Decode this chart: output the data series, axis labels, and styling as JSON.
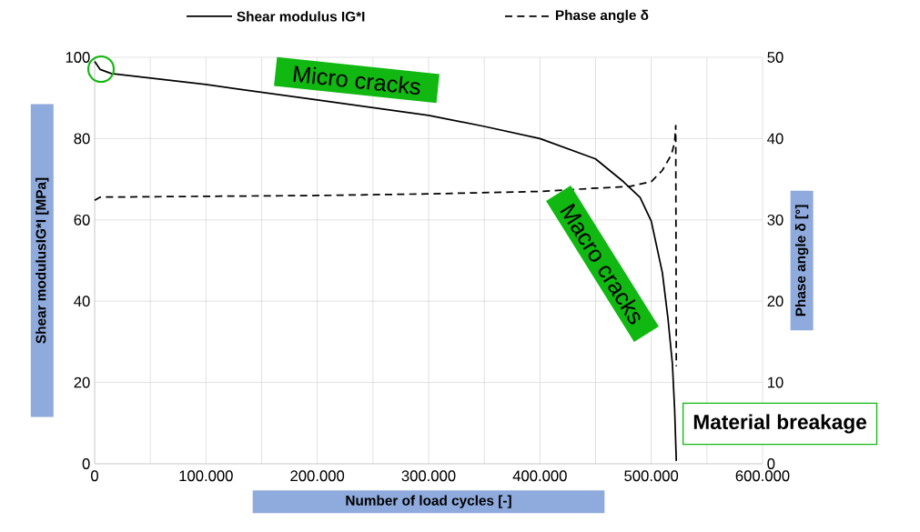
{
  "chart_data": {
    "type": "line",
    "xlabel": "Number of load cycles [-]",
    "ylabel": "Shear modulusIG*I [MPa]",
    "y2label": "Phase angle δ [°]",
    "xlim": [
      0,
      600000
    ],
    "xticks": [
      0,
      {
        "value": 50000,
        "label": null
      },
      {
        "value": 100000,
        "label": "100.000"
      },
      {
        "value": 150000,
        "label": null
      },
      {
        "value": 200000,
        "label": "200.000"
      },
      {
        "value": 250000,
        "label": null
      },
      {
        "value": 300000,
        "label": "300.000"
      },
      {
        "value": 350000,
        "label": null
      },
      {
        "value": 400000,
        "label": "400.000"
      },
      {
        "value": 450000,
        "label": null
      },
      {
        "value": 500000,
        "label": "500.000"
      },
      {
        "value": 550000,
        "label": null
      },
      {
        "value": 600000,
        "label": "600.000"
      }
    ],
    "ylim": [
      0,
      100
    ],
    "yticks": [
      0,
      20,
      40,
      60,
      80,
      100
    ],
    "y2lim": [
      0,
      50
    ],
    "y2ticks": [
      0,
      10,
      20,
      30,
      40,
      50
    ],
    "grid": true,
    "legend": "top",
    "series": [
      {
        "name": "Shear modulus IG*I",
        "color": "#000000",
        "line_style": "solid",
        "x": [
          0,
          5000,
          15000,
          100000,
          200000,
          300000,
          350000,
          400000,
          450000,
          475000,
          490000,
          500000,
          510000,
          515000,
          519000,
          521000,
          522500
        ],
        "values": [
          99,
          97,
          96,
          93.3,
          89.5,
          85.7,
          83,
          80,
          75,
          69.4,
          65.5,
          59.7,
          47,
          35.8,
          24.6,
          13.4,
          0.7
        ]
      },
      {
        "name": "Phase angle δ",
        "color": "#000000",
        "line_style": "dashed",
        "axis": "y2",
        "x": [
          0,
          5000,
          100000,
          200000,
          300000,
          400000,
          450000,
          480000,
          500000,
          510000,
          518000,
          521000,
          522000,
          522500
        ],
        "values": [
          32.4,
          32.8,
          32.9,
          33.0,
          33.2,
          33.5,
          33.9,
          34.1,
          34.7,
          36.1,
          38,
          39.5,
          41.6,
          12
        ]
      }
    ],
    "annotations": [
      "Micro cracks",
      "Macro cracks",
      "Material breakage"
    ]
  }
}
